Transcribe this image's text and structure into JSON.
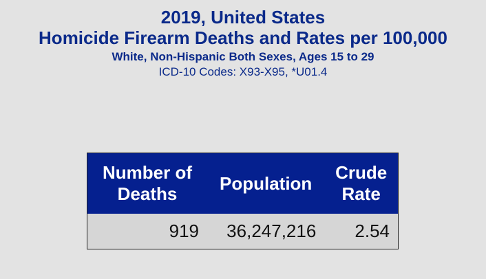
{
  "title": {
    "line1": "2019, United States",
    "line2": "Homicide Firearm Deaths and Rates per 100,000",
    "line3": "White, Non-Hispanic Both Sexes, Ages 15 to 29",
    "line4": "ICD-10 Codes: X93-X95, *U01.4"
  },
  "table": {
    "headers": [
      "Number of Deaths",
      "Population",
      "Crude Rate"
    ],
    "header_lines": [
      [
        "Number of",
        "Deaths"
      ],
      [
        "Population"
      ],
      [
        "Crude",
        "Rate"
      ]
    ],
    "rows": [
      [
        "919",
        "36,247,216",
        "2.54"
      ]
    ]
  },
  "colors": {
    "header_bg": "#05208f",
    "title": "#0b2a8a",
    "row_bg": "#d6d6d6"
  }
}
